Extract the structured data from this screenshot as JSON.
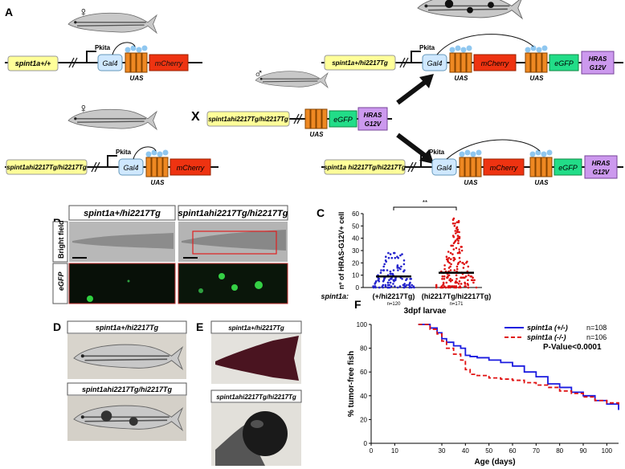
{
  "panels": {
    "a": "A",
    "b": "B",
    "c": "C",
    "d": "D",
    "e": "E",
    "f": "F"
  },
  "genes": {
    "wt_top": "spint1a+/+",
    "hom_mother": "spint1ahi2217Tg/hi2217Tg",
    "father": "spint1ahi2217Tg/hi2217Tg",
    "het_off": "spint1a+/hi2217Tg",
    "hom_off": "spint1a hi2217Tg/hi2217Tg"
  },
  "constructs": {
    "promoter": "Pkita",
    "gal4": "Gal4",
    "uas": "UAS",
    "mcherry": "mCherry",
    "egfp": "eGFP",
    "hras_l1": "HRAS",
    "hras_l2": "G12V"
  },
  "cross_symbol": "X",
  "sex": {
    "female": "♀",
    "male": "♂"
  },
  "panel_b": {
    "col1": "spint1a+/hi2217Tg",
    "col2": "spint1ahi2217Tg/hi2217Tg",
    "row1": "Bright field",
    "row2": "eGFP"
  },
  "panel_d": {
    "top": "spint1a+/hi2217Tg",
    "bottom": "spint1ahi2217Tg/hi2217Tg"
  },
  "panel_e": {
    "top": "spint1a+/hi2217Tg",
    "bottom": "spint1ahi2217Tg/hi2217Tg"
  },
  "chart_data": [
    {
      "type": "scatter",
      "ylabel": "nº of HRAS-G12V+ cell",
      "xlabel": "3dpf larvae",
      "row_label": "spint1a:",
      "significance": "**",
      "yticks": [
        0,
        10,
        20,
        30,
        40,
        50,
        60
      ],
      "ylim": [
        0,
        60
      ],
      "groups": [
        {
          "name": "(+/hi2217Tg)",
          "n": "n=120",
          "color": "#2222cc",
          "mean": 9
        },
        {
          "name": "(hi2217Tg/hi2217Tg)",
          "n": "n=171",
          "color": "#dd1111",
          "mean": 12
        }
      ]
    },
    {
      "type": "line",
      "ylabel": "% tumor-free fish",
      "xlabel": "Age (days)",
      "xticks": [
        0,
        10,
        30,
        40,
        50,
        60,
        70,
        80,
        90,
        100
      ],
      "yticks": [
        0,
        20,
        40,
        60,
        80,
        100
      ],
      "xlim": [
        0,
        105
      ],
      "ylim": [
        0,
        100
      ],
      "pvalue": "P-Value<0.0001",
      "series": [
        {
          "name": "spint1a (+/-)",
          "n": "n=108",
          "color": "#1a1adf",
          "x": [
            20,
            25,
            28,
            30,
            32,
            35,
            38,
            40,
            42,
            45,
            50,
            55,
            60,
            65,
            70,
            75,
            80,
            85,
            90,
            95,
            100,
            105
          ],
          "y": [
            100,
            97,
            93,
            88,
            85,
            82,
            80,
            74,
            73,
            72,
            70,
            68,
            65,
            60,
            56,
            50,
            47,
            43,
            40,
            36,
            33,
            28
          ]
        },
        {
          "name": "spint1a (-/-)",
          "n": "n=106",
          "color": "#e01010",
          "x": [
            20,
            25,
            28,
            30,
            32,
            35,
            38,
            40,
            42,
            45,
            50,
            55,
            60,
            65,
            70,
            75,
            80,
            85,
            90,
            95,
            100,
            105
          ],
          "y": [
            100,
            96,
            92,
            86,
            80,
            75,
            70,
            62,
            58,
            57,
            55,
            54,
            53,
            51,
            49,
            47,
            44,
            42,
            39,
            36,
            34,
            31
          ]
        }
      ]
    }
  ]
}
